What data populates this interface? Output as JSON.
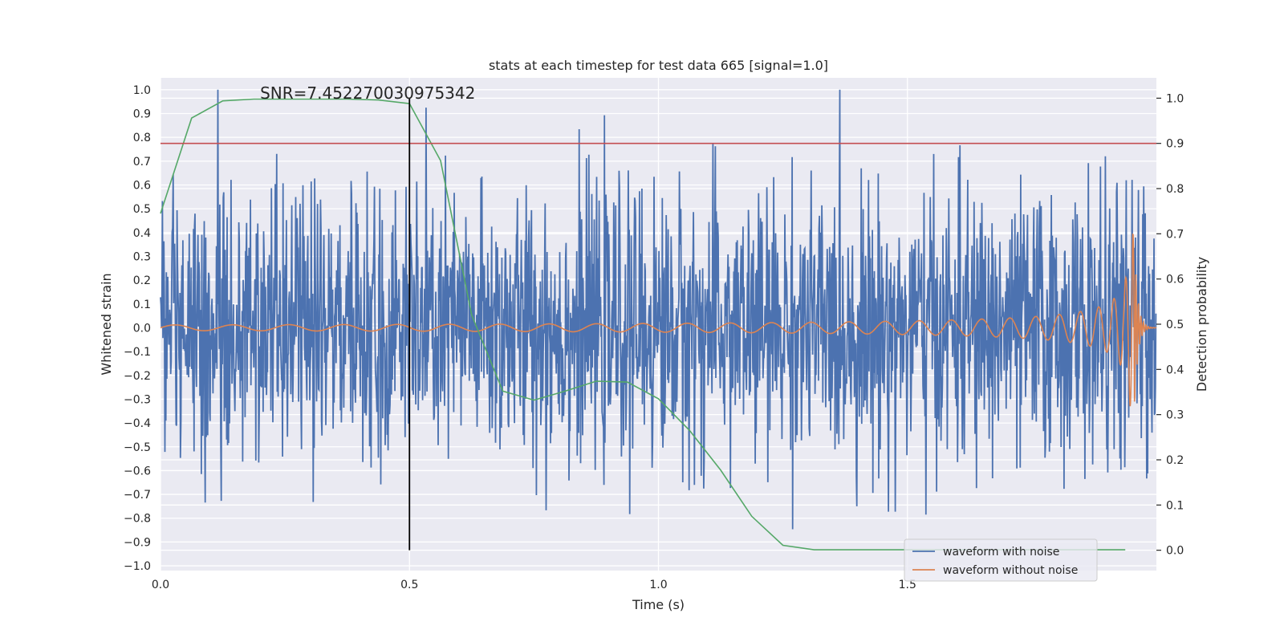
{
  "chart_data": {
    "type": "line",
    "title": "stats at each timestep for test data 665 [signal=1.0]",
    "xlabel": "Time (s)",
    "ylabel": "Whitened strain",
    "y2label": "Detection probability",
    "xlim": [
      0.0,
      2.0
    ],
    "ylim": [
      -1.02,
      1.05
    ],
    "y2lim": [
      -0.045,
      1.045
    ],
    "xticks": [
      "0.0",
      "0.5",
      "1.0",
      "1.5"
    ],
    "yticks": [
      "1.0",
      "0.9",
      "0.8",
      "0.7",
      "0.6",
      "0.5",
      "0.4",
      "0.3",
      "0.2",
      "0.1",
      "0.0",
      "−0.1",
      "−0.2",
      "−0.3",
      "−0.4",
      "−0.5",
      "−0.6",
      "−0.7",
      "−0.8",
      "−0.9",
      "−1.0"
    ],
    "y2ticks": [
      "1.0",
      "0.9",
      "0.8",
      "0.7",
      "0.6",
      "0.5",
      "0.4",
      "0.3",
      "0.2",
      "0.1",
      "0.0"
    ],
    "annotation": "SNR=7.452270030975342",
    "threshold": 0.9,
    "marker_time": 0.5,
    "noisy_waveform": {
      "name": "waveform with noise",
      "color": "#4c72b0",
      "n_points": 2048,
      "approx_range": [
        -0.93,
        1.0
      ]
    },
    "clean_waveform": {
      "name": "waveform without noise",
      "color": "#dd8452",
      "chirp": {
        "amplitude_start": 0.012,
        "amplitude_peak": 0.4,
        "merger_time": 1.955,
        "freq_start_hz": 8.5,
        "freq_end_hz": 200
      }
    },
    "detection_probability": {
      "name": "detection probability",
      "color": "#55a868",
      "t": [
        0.0,
        0.0625,
        0.125,
        0.1875,
        0.25,
        0.3125,
        0.375,
        0.4375,
        0.5,
        0.5625,
        0.625,
        0.6875,
        0.75,
        0.8125,
        0.875,
        0.9375,
        1.0,
        1.0625,
        1.125,
        1.1875,
        1.25,
        1.3125,
        1.375,
        1.4375,
        1.5,
        1.5625,
        1.625,
        1.6875,
        1.75,
        1.8125,
        1.875,
        1.9375
      ],
      "p": [
        0.745,
        0.956,
        0.994,
        0.998,
        0.998,
        0.998,
        0.998,
        0.996,
        0.988,
        0.862,
        0.52,
        0.352,
        0.332,
        0.352,
        0.374,
        0.372,
        0.335,
        0.265,
        0.177,
        0.075,
        0.011,
        0.001,
        0.001,
        0.001,
        0.001,
        0.001,
        0.001,
        0.001,
        0.001,
        0.001,
        0.001,
        0.001
      ]
    },
    "threshold_color": "#c44e52",
    "marker_color": "#000000",
    "legend": {
      "location": "lower-right",
      "entries": [
        "waveform with noise",
        "waveform without noise"
      ]
    }
  }
}
